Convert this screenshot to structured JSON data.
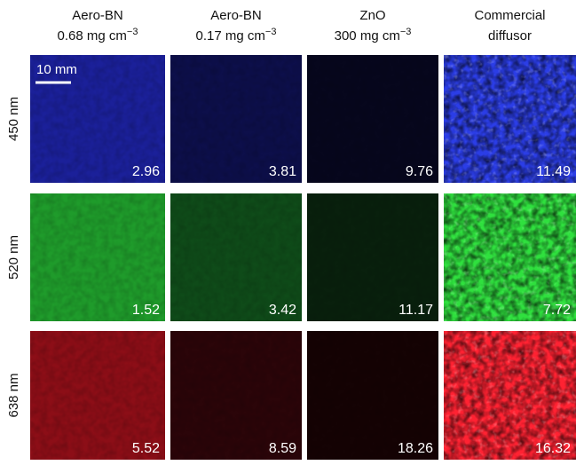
{
  "columns": [
    {
      "line1": "Aero-BN",
      "line2": "0.68 mg cm",
      "sup": "−3"
    },
    {
      "line1": "Aero-BN",
      "line2": "0.17 mg cm",
      "sup": "−3"
    },
    {
      "line1": "ZnO",
      "line2": "300 mg cm",
      "sup": "−3"
    },
    {
      "line1": "Commercial",
      "line2": "diffusor"
    }
  ],
  "rows": [
    {
      "label": "450 nm",
      "values": [
        2.96,
        3.81,
        9.76,
        11.49
      ]
    },
    {
      "label": "520 nm",
      "values": [
        1.52,
        3.42,
        11.17,
        7.72
      ]
    },
    {
      "label": "638 nm",
      "values": [
        5.52,
        8.59,
        18.26,
        16.32
      ]
    }
  ],
  "scale_bar": "10 mm"
}
